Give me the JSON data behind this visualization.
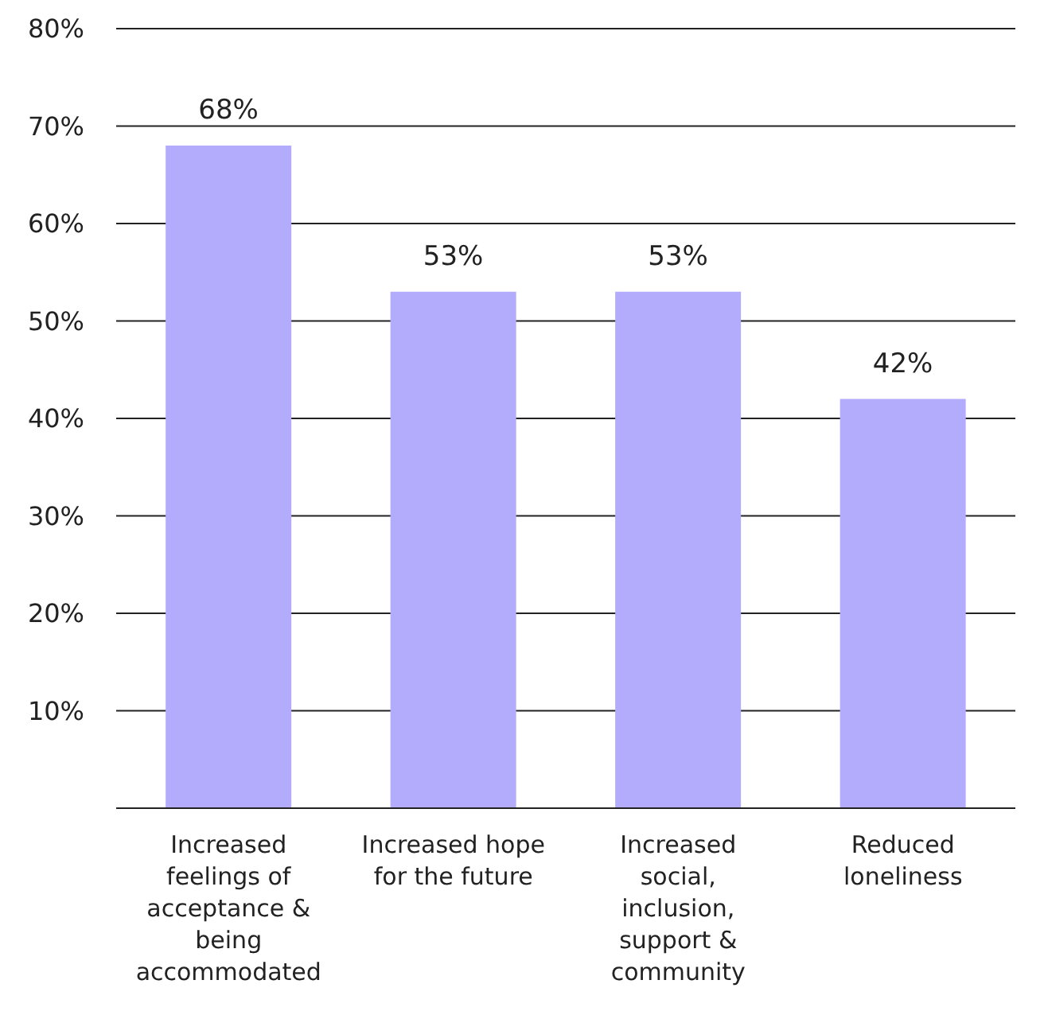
{
  "chart_data": {
    "type": "bar",
    "categories": [
      "Increased feelings of acceptance & being accommodated",
      "Increased hope for the future",
      "Increased social, inclusion, support & community",
      "Reduced loneliness"
    ],
    "values": [
      68,
      53,
      53,
      42
    ],
    "color": "#b3acfc",
    "value_labels": [
      "68%",
      "53%",
      "53%",
      "42%"
    ],
    "ylim": [
      0,
      80
    ],
    "yticks": [
      {
        "value": 0,
        "label": null
      },
      {
        "value": 10,
        "label": "10%"
      },
      {
        "value": 20,
        "label": "20%"
      },
      {
        "value": 30,
        "label": "30%"
      },
      {
        "value": 40,
        "label": "40%"
      },
      {
        "value": 50,
        "label": "50%"
      },
      {
        "value": 60,
        "label": "60%"
      },
      {
        "value": 70,
        "label": "70%"
      },
      {
        "value": 80,
        "label": "80%"
      }
    ],
    "grid": "y"
  }
}
